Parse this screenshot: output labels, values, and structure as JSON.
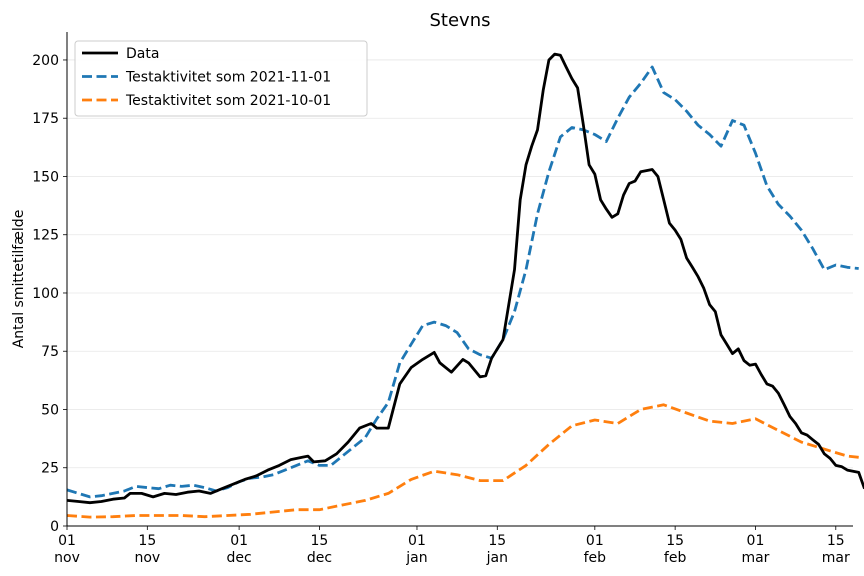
{
  "chart_data": {
    "type": "line",
    "title": "Stevns",
    "xlabel": "",
    "ylabel": "Antal smittetilfælde",
    "ylim": [
      0,
      212
    ],
    "yticks": [
      0,
      25,
      50,
      75,
      100,
      125,
      150,
      175,
      200
    ],
    "xlim": [
      "2021-11-01",
      "2022-03-18"
    ],
    "xticks": [
      {
        "date": "2021-11-01",
        "day": "01",
        "month": "nov"
      },
      {
        "date": "2021-11-15",
        "day": "15",
        "month": "nov"
      },
      {
        "date": "2021-12-01",
        "day": "01",
        "month": "dec"
      },
      {
        "date": "2021-12-15",
        "day": "15",
        "month": "dec"
      },
      {
        "date": "2022-01-01",
        "day": "01",
        "month": "jan"
      },
      {
        "date": "2022-01-15",
        "day": "15",
        "month": "jan"
      },
      {
        "date": "2022-02-01",
        "day": "01",
        "month": "feb"
      },
      {
        "date": "2022-02-15",
        "day": "15",
        "month": "feb"
      },
      {
        "date": "2022-03-01",
        "day": "01",
        "month": "mar"
      },
      {
        "date": "2022-03-15",
        "day": "15",
        "month": "mar"
      }
    ],
    "grid": "horizontal",
    "legend_position": "top-left",
    "series": [
      {
        "name": "Data",
        "color": "#000000",
        "style": "solid",
        "points": [
          [
            "2021-11-01",
            11
          ],
          [
            "2021-11-03",
            10.5
          ],
          [
            "2021-11-05",
            10
          ],
          [
            "2021-11-07",
            10.5
          ],
          [
            "2021-11-09",
            11.5
          ],
          [
            "2021-11-11",
            12
          ],
          [
            "2021-11-12",
            14
          ],
          [
            "2021-11-14",
            14
          ],
          [
            "2021-11-16",
            12.5
          ],
          [
            "2021-11-18",
            14
          ],
          [
            "2021-11-20",
            13.5
          ],
          [
            "2021-11-22",
            14.5
          ],
          [
            "2021-11-24",
            15
          ],
          [
            "2021-11-26",
            14
          ],
          [
            "2021-11-28",
            16
          ],
          [
            "2021-11-30",
            18
          ],
          [
            "2021-12-02",
            20
          ],
          [
            "2021-12-04",
            21.5
          ],
          [
            "2021-12-06",
            24
          ],
          [
            "2021-12-08",
            26
          ],
          [
            "2021-12-10",
            28.5
          ],
          [
            "2021-12-12",
            29.5
          ],
          [
            "2021-12-13",
            30
          ],
          [
            "2021-12-14",
            27.5
          ],
          [
            "2021-12-16",
            28
          ],
          [
            "2021-12-18",
            31
          ],
          [
            "2021-12-20",
            36
          ],
          [
            "2021-12-22",
            42
          ],
          [
            "2021-12-24",
            44
          ],
          [
            "2021-12-25",
            42
          ],
          [
            "2021-12-27",
            42
          ],
          [
            "2021-12-29",
            61
          ],
          [
            "2021-12-31",
            68
          ],
          [
            "2022-01-02",
            71.5
          ],
          [
            "2022-01-04",
            74.5
          ],
          [
            "2022-01-05",
            70
          ],
          [
            "2022-01-07",
            66
          ],
          [
            "2022-01-09",
            71.5
          ],
          [
            "2022-01-10",
            70
          ],
          [
            "2022-01-12",
            64
          ],
          [
            "2022-01-13",
            64.5
          ],
          [
            "2022-01-14",
            72
          ],
          [
            "2022-01-16",
            80
          ],
          [
            "2022-01-18",
            110
          ],
          [
            "2022-01-19",
            140
          ],
          [
            "2022-01-20",
            155
          ],
          [
            "2022-01-21",
            163
          ],
          [
            "2022-01-22",
            170
          ],
          [
            "2022-01-23",
            187
          ],
          [
            "2022-01-24",
            200
          ],
          [
            "2022-01-25",
            202.5
          ],
          [
            "2022-01-26",
            202
          ],
          [
            "2022-01-27",
            197
          ],
          [
            "2022-01-28",
            192
          ],
          [
            "2022-01-29",
            188
          ],
          [
            "2022-01-30",
            172
          ],
          [
            "2022-01-31",
            155
          ],
          [
            "2022-02-01",
            151
          ],
          [
            "2022-02-02",
            140
          ],
          [
            "2022-02-03",
            136
          ],
          [
            "2022-02-04",
            132.5
          ],
          [
            "2022-02-05",
            134
          ],
          [
            "2022-02-06",
            142
          ],
          [
            "2022-02-07",
            147
          ],
          [
            "2022-02-08",
            148
          ],
          [
            "2022-02-09",
            152
          ],
          [
            "2022-02-11",
            153
          ],
          [
            "2022-02-12",
            150
          ],
          [
            "2022-02-13",
            140
          ],
          [
            "2022-02-14",
            130
          ],
          [
            "2022-02-15",
            127
          ],
          [
            "2022-02-16",
            123
          ],
          [
            "2022-02-17",
            115
          ],
          [
            "2022-02-18",
            111
          ],
          [
            "2022-02-19",
            107
          ],
          [
            "2022-02-20",
            102
          ],
          [
            "2022-02-21",
            95
          ],
          [
            "2022-02-22",
            92
          ],
          [
            "2022-02-23",
            82
          ],
          [
            "2022-02-24",
            78
          ],
          [
            "2022-02-25",
            74
          ],
          [
            "2022-02-26",
            76
          ],
          [
            "2022-02-27",
            71
          ],
          [
            "2022-02-28",
            69
          ],
          [
            "2022-03-01",
            69.5
          ],
          [
            "2022-03-02",
            65
          ],
          [
            "2022-03-03",
            61
          ],
          [
            "2022-03-04",
            60
          ],
          [
            "2022-03-05",
            57
          ],
          [
            "2022-03-06",
            52
          ],
          [
            "2022-03-07",
            47
          ],
          [
            "2022-03-08",
            44
          ],
          [
            "2022-03-09",
            40
          ],
          [
            "2022-03-10",
            39
          ],
          [
            "2022-03-11",
            37
          ],
          [
            "2022-03-12",
            35
          ],
          [
            "2022-03-13",
            31
          ],
          [
            "2022-03-14",
            29
          ],
          [
            "2022-03-15",
            26
          ],
          [
            "2022-03-16",
            25.5
          ],
          [
            "2022-03-17",
            24
          ],
          [
            "2022-03-18",
            23.5
          ],
          [
            "2022-03-19",
            23
          ],
          [
            "2022-03-20",
            16
          ]
        ]
      },
      {
        "name": "Testaktivitet som 2021-11-01",
        "color": "#1f77b4",
        "style": "dashed",
        "points": [
          [
            "2021-11-01",
            15.5
          ],
          [
            "2021-11-03",
            14
          ],
          [
            "2021-11-05",
            12.5
          ],
          [
            "2021-11-07",
            13
          ],
          [
            "2021-11-09",
            14
          ],
          [
            "2021-11-11",
            15
          ],
          [
            "2021-11-13",
            17
          ],
          [
            "2021-11-15",
            16.5
          ],
          [
            "2021-11-17",
            16
          ],
          [
            "2021-11-19",
            17.5
          ],
          [
            "2021-11-21",
            17
          ],
          [
            "2021-11-23",
            17.5
          ],
          [
            "2021-11-25",
            16.5
          ],
          [
            "2021-11-27",
            15
          ],
          [
            "2021-11-29",
            16.5
          ],
          [
            "2021-12-01",
            19
          ],
          [
            "2021-12-03",
            20.5
          ],
          [
            "2021-12-05",
            21
          ],
          [
            "2021-12-07",
            22
          ],
          [
            "2021-12-09",
            24
          ],
          [
            "2021-12-11",
            26
          ],
          [
            "2021-12-13",
            28
          ],
          [
            "2021-12-15",
            26
          ],
          [
            "2021-12-17",
            26
          ],
          [
            "2021-12-19",
            30
          ],
          [
            "2021-12-21",
            34
          ],
          [
            "2021-12-23",
            38
          ],
          [
            "2021-12-25",
            46
          ],
          [
            "2021-12-27",
            53
          ],
          [
            "2021-12-29",
            70
          ],
          [
            "2021-12-31",
            78
          ],
          [
            "2022-01-02",
            86
          ],
          [
            "2022-01-04",
            87.5
          ],
          [
            "2022-01-06",
            86
          ],
          [
            "2022-01-08",
            83
          ],
          [
            "2022-01-10",
            76
          ],
          [
            "2022-01-12",
            73.5
          ],
          [
            "2022-01-14",
            72
          ],
          [
            "2022-01-16",
            80
          ],
          [
            "2022-01-18",
            92
          ],
          [
            "2022-01-20",
            110
          ],
          [
            "2022-01-22",
            134
          ],
          [
            "2022-01-24",
            152
          ],
          [
            "2022-01-26",
            167
          ],
          [
            "2022-01-28",
            171
          ],
          [
            "2022-01-30",
            170
          ],
          [
            "2022-02-01",
            168
          ],
          [
            "2022-02-03",
            165
          ],
          [
            "2022-02-05",
            175
          ],
          [
            "2022-02-07",
            184
          ],
          [
            "2022-02-09",
            190
          ],
          [
            "2022-02-11",
            197
          ],
          [
            "2022-02-13",
            186
          ],
          [
            "2022-02-15",
            183
          ],
          [
            "2022-02-17",
            178
          ],
          [
            "2022-02-19",
            172
          ],
          [
            "2022-02-21",
            168
          ],
          [
            "2022-02-23",
            163
          ],
          [
            "2022-02-25",
            174
          ],
          [
            "2022-02-27",
            172
          ],
          [
            "2022-03-01",
            160
          ],
          [
            "2022-03-03",
            146
          ],
          [
            "2022-03-05",
            138
          ],
          [
            "2022-03-07",
            133
          ],
          [
            "2022-03-09",
            127
          ],
          [
            "2022-03-11",
            119
          ],
          [
            "2022-03-13",
            110
          ],
          [
            "2022-03-15",
            112
          ],
          [
            "2022-03-17",
            111
          ],
          [
            "2022-03-19",
            110.5
          ]
        ]
      },
      {
        "name": "Testaktivitet som 2021-10-01",
        "color": "#ff7f0e",
        "style": "dashed",
        "points": [
          [
            "2021-11-01",
            4.5
          ],
          [
            "2021-11-05",
            3.8
          ],
          [
            "2021-11-09",
            4
          ],
          [
            "2021-11-13",
            4.5
          ],
          [
            "2021-11-17",
            4.5
          ],
          [
            "2021-11-21",
            4.5
          ],
          [
            "2021-11-25",
            4
          ],
          [
            "2021-11-29",
            4.5
          ],
          [
            "2021-12-03",
            5
          ],
          [
            "2021-12-07",
            6
          ],
          [
            "2021-12-11",
            7
          ],
          [
            "2021-12-15",
            7
          ],
          [
            "2021-12-19",
            9
          ],
          [
            "2021-12-23",
            11
          ],
          [
            "2021-12-27",
            14
          ],
          [
            "2021-12-31",
            20
          ],
          [
            "2022-01-04",
            23.5
          ],
          [
            "2022-01-08",
            22
          ],
          [
            "2022-01-12",
            19.5
          ],
          [
            "2022-01-16",
            19.5
          ],
          [
            "2022-01-20",
            26
          ],
          [
            "2022-01-24",
            35
          ],
          [
            "2022-01-28",
            43
          ],
          [
            "2022-02-01",
            45.5
          ],
          [
            "2022-02-05",
            44
          ],
          [
            "2022-02-09",
            50
          ],
          [
            "2022-02-13",
            52
          ],
          [
            "2022-02-17",
            48.5
          ],
          [
            "2022-02-21",
            45
          ],
          [
            "2022-02-25",
            44
          ],
          [
            "2022-03-01",
            46
          ],
          [
            "2022-03-05",
            41
          ],
          [
            "2022-03-09",
            36
          ],
          [
            "2022-03-13",
            33
          ],
          [
            "2022-03-17",
            30
          ],
          [
            "2022-03-19",
            29.5
          ]
        ]
      }
    ]
  }
}
